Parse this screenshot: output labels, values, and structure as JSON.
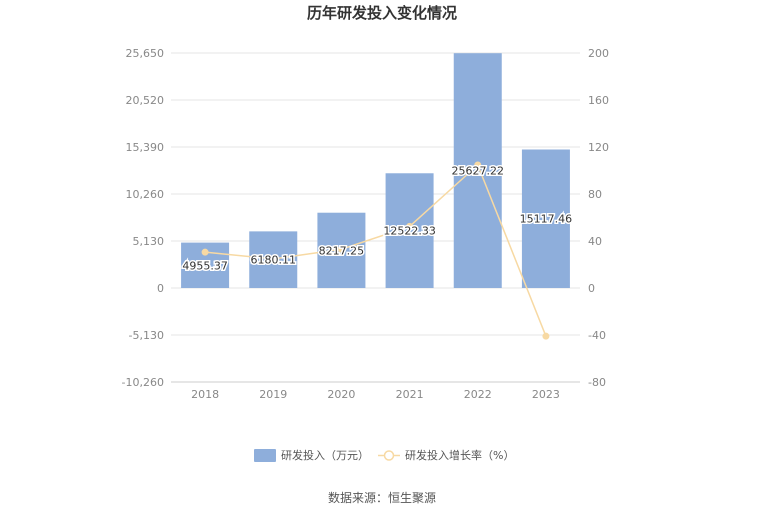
{
  "chart_data": {
    "type": "bar",
    "title": "历年研发投入变化情况",
    "categories": [
      "2018",
      "2019",
      "2020",
      "2021",
      "2022",
      "2023"
    ],
    "series": [
      {
        "name": "研发投入（万元）",
        "type": "bar",
        "axis": "left",
        "color": "#8eaedb",
        "values": [
          4955.37,
          6180.11,
          8217.25,
          12522.33,
          25627.22,
          15117.46
        ],
        "labels": [
          "4955.37",
          "6180.11",
          "8217.25",
          "12522.33",
          "25627.22",
          "15117.46"
        ]
      },
      {
        "name": "研发投入增长率（%）",
        "type": "line",
        "axis": "right",
        "color": "#f7d9a3",
        "values": [
          30.5,
          24.7,
          33.0,
          52.4,
          104.7,
          -41.0
        ]
      }
    ],
    "y_left": {
      "min": -10260,
      "max": 25650,
      "ticks": [
        25650,
        20520,
        15390,
        10260,
        5130,
        0,
        -5130,
        -10260
      ],
      "tick_labels": [
        "25,650",
        "20,520",
        "15,390",
        "10,260",
        "5,130",
        "0",
        "-5,130",
        "-10,260"
      ]
    },
    "y_right": {
      "min": -80,
      "max": 200,
      "ticks": [
        200,
        160,
        120,
        80,
        40,
        0,
        -40,
        -80
      ],
      "tick_labels": [
        "200",
        "160",
        "120",
        "80",
        "40",
        "0",
        "-40",
        "-80"
      ]
    },
    "grid": true,
    "legend": "bottom-center",
    "source": "数据来源：恒生聚源"
  }
}
